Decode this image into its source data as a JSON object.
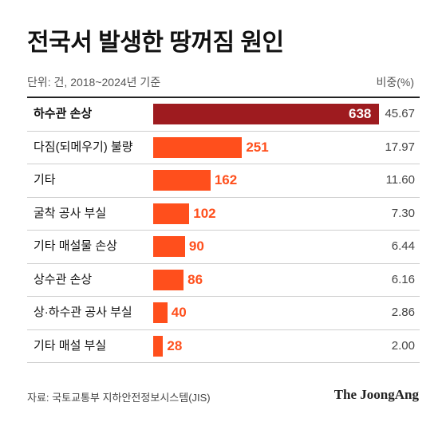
{
  "title": "전국서 발생한 땅꺼짐 원인",
  "unit": "단위: 건, 2018~2024년 기준",
  "ratio_header": "비중(%)",
  "source": "자료: 국토교통부 지하안전정보시스템(JIS)",
  "brand": "The JoongAng",
  "colors": {
    "highlight_bar": "#9e1b1f",
    "bar": "#ff4f1c",
    "highlight_value": "#ffffff"
  },
  "chart_data": {
    "type": "bar",
    "orientation": "horizontal",
    "categories": [
      "하수관 손상",
      "다짐(되메우기) 불량",
      "기타",
      "굴착 공사 부실",
      "기타 매설물 손상",
      "상수관 손상",
      "상·하수관 공사 부실",
      "기타 매설 부실"
    ],
    "values": [
      638,
      251,
      162,
      102,
      90,
      86,
      40,
      28
    ],
    "ratios": [
      "45.67",
      "17.97",
      "11.60",
      "7.30",
      "6.44",
      "6.16",
      "2.86",
      "2.00"
    ],
    "xlim": [
      0,
      638
    ]
  }
}
